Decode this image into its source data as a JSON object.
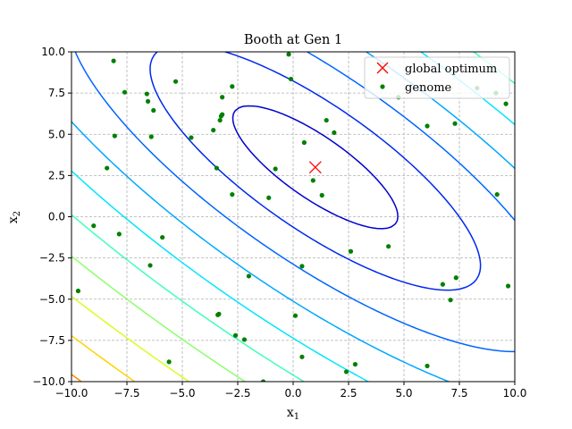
{
  "chart_data": {
    "type": "scatter",
    "title": "Booth at Gen 1",
    "xlabel": {
      "base": "x",
      "sub": "1"
    },
    "ylabel": {
      "base": "x",
      "sub": "2"
    },
    "xlim": [
      -10,
      10
    ],
    "ylim": [
      -10,
      10
    ],
    "x_ticks": [
      -10,
      -7.5,
      -5,
      -2.5,
      0,
      2.5,
      5,
      7.5,
      10
    ],
    "y_ticks": [
      -10,
      -7.5,
      -5,
      -2.5,
      0,
      2.5,
      5,
      7.5,
      10
    ],
    "x_tick_labels": [
      "−10.0",
      "−7.5",
      "−5.0",
      "−2.5",
      "0.0",
      "2.5",
      "5.0",
      "7.5",
      "10.0"
    ],
    "y_tick_labels": [
      "−10.0",
      "−7.5",
      "−5.0",
      "−2.5",
      "0.0",
      "2.5",
      "5.0",
      "7.5",
      "10.0"
    ],
    "grid": true,
    "legend_position": "top-right",
    "contour": {
      "function": "Booth",
      "levels": [
        25,
        100,
        225,
        400,
        625,
        900,
        1225,
        1600,
        2025,
        2500
      ],
      "colors": [
        "#0000cd",
        "#0028ee",
        "#0066ff",
        "#00a8ff",
        "#00e5ff",
        "#3fffb8",
        "#8cff6b",
        "#d4ff22",
        "#ffd200",
        "#ff8c00",
        "#ff3300",
        "#e00000"
      ]
    },
    "series": [
      {
        "name": "global optimum",
        "marker": "x",
        "color": "#ff0000",
        "points": [
          [
            1,
            3
          ]
        ]
      },
      {
        "name": "genome",
        "marker": "circle",
        "color": "#008000",
        "points": [
          [
            -8.1,
            9.45
          ],
          [
            -7.6,
            7.55
          ],
          [
            -6.6,
            7.45
          ],
          [
            -6.55,
            7.0
          ],
          [
            -6.3,
            6.45
          ],
          [
            -5.3,
            8.2
          ],
          [
            -2.75,
            7.9
          ],
          [
            -3.2,
            7.25
          ],
          [
            -3.25,
            6.1
          ],
          [
            -3.3,
            5.85
          ],
          [
            -3.2,
            6.2
          ],
          [
            -3.6,
            5.25
          ],
          [
            -4.6,
            4.8
          ],
          [
            -6.4,
            4.85
          ],
          [
            -8.05,
            4.9
          ],
          [
            -8.4,
            2.95
          ],
          [
            -3.45,
            2.95
          ],
          [
            -2.75,
            1.35
          ],
          [
            -1.1,
            1.15
          ],
          [
            -0.8,
            2.9
          ],
          [
            -0.2,
            9.85
          ],
          [
            -0.1,
            8.35
          ],
          [
            0.5,
            4.5
          ],
          [
            0.9,
            2.2
          ],
          [
            1.3,
            1.3
          ],
          [
            1.5,
            5.85
          ],
          [
            1.85,
            5.1
          ],
          [
            -9.0,
            -0.55
          ],
          [
            -7.85,
            -1.05
          ],
          [
            -5.9,
            -1.25
          ],
          [
            -6.45,
            -2.95
          ],
          [
            -9.7,
            -4.5
          ],
          [
            -2.0,
            -3.6
          ],
          [
            -3.4,
            -5.95
          ],
          [
            -3.35,
            -5.9
          ],
          [
            -2.6,
            -7.2
          ],
          [
            -2.2,
            -7.45
          ],
          [
            -5.6,
            -8.8
          ],
          [
            -1.35,
            -10.0
          ],
          [
            0.1,
            -6.0
          ],
          [
            0.4,
            -3.0
          ],
          [
            0.4,
            -8.5
          ],
          [
            2.6,
            -2.1
          ],
          [
            2.4,
            -9.4
          ],
          [
            2.8,
            -8.95
          ],
          [
            4.3,
            -1.8
          ],
          [
            6.05,
            5.5
          ],
          [
            6.05,
            -9.05
          ],
          [
            7.3,
            5.65
          ],
          [
            6.75,
            -4.1
          ],
          [
            7.1,
            -5.05
          ],
          [
            7.35,
            -3.7
          ],
          [
            9.6,
            6.85
          ],
          [
            9.2,
            1.35
          ],
          [
            9.7,
            -4.2
          ],
          [
            4.75,
            7.25
          ],
          [
            9.15,
            7.5
          ],
          [
            8.3,
            7.8
          ]
        ]
      }
    ]
  }
}
